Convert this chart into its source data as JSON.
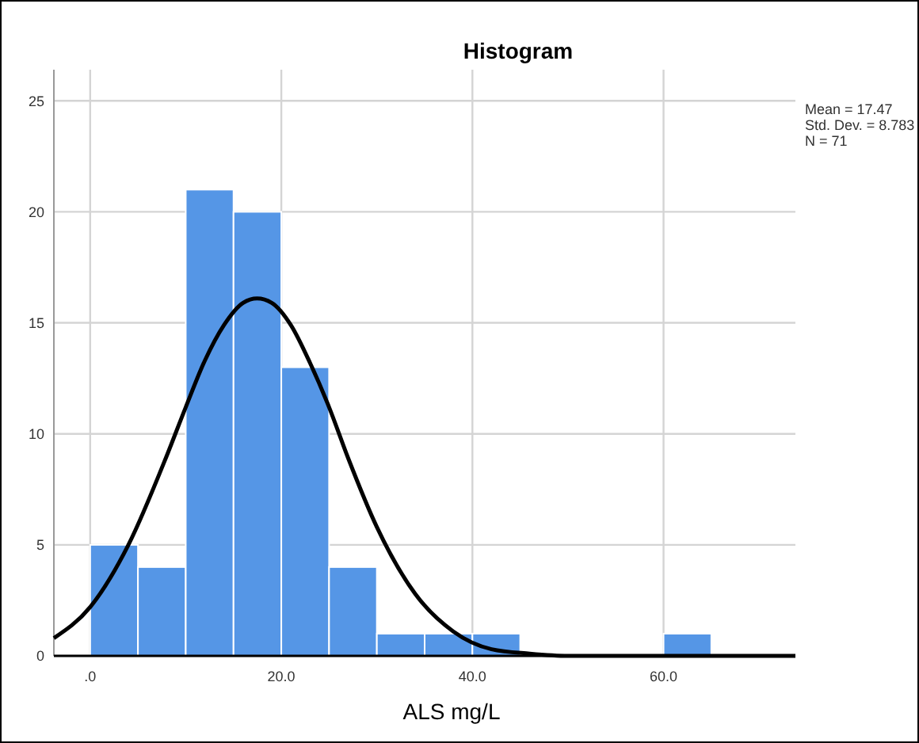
{
  "chart_data": {
    "type": "histogram",
    "title": "Histogram",
    "xlabel": "ALS mg/L",
    "annotations": [
      "Mean = 17.47",
      "Std. Dev. = 8.783",
      "N = 71"
    ],
    "xlim": [
      -3.8,
      73.8
    ],
    "ylim": [
      0,
      26.4
    ],
    "xticks": [
      {
        "value": 0,
        "label": ".0"
      },
      {
        "value": 20,
        "label": "20.0"
      },
      {
        "value": 40,
        "label": "40.0"
      },
      {
        "value": 60,
        "label": "60.0"
      }
    ],
    "yticks": [
      0,
      5,
      10,
      15,
      20,
      25
    ],
    "grid": true,
    "series": [
      {
        "color": "#5596e6",
        "bins": [
          0,
          5,
          10,
          15,
          20,
          25,
          30,
          35,
          40,
          45,
          50,
          55,
          60,
          65
        ],
        "values": [
          5,
          4,
          21,
          20,
          13,
          4,
          1,
          1,
          1,
          0,
          0,
          0,
          1
        ]
      },
      {
        "type": "line",
        "color": "#000000",
        "x": [
          -3.8,
          0,
          4,
          8,
          10,
          12,
          14,
          16,
          17.47,
          19,
          21,
          23,
          25,
          27,
          30,
          34,
          38,
          42,
          46,
          50,
          55,
          60,
          65,
          70,
          73.8
        ],
        "values": [
          0.8,
          2.2,
          5.0,
          9.0,
          11.2,
          13.3,
          14.9,
          15.9,
          16.1,
          15.9,
          14.9,
          13.2,
          11.2,
          8.9,
          5.8,
          2.8,
          1.1,
          0.3,
          0.1,
          0,
          0,
          0,
          0,
          0,
          0
        ]
      }
    ]
  }
}
